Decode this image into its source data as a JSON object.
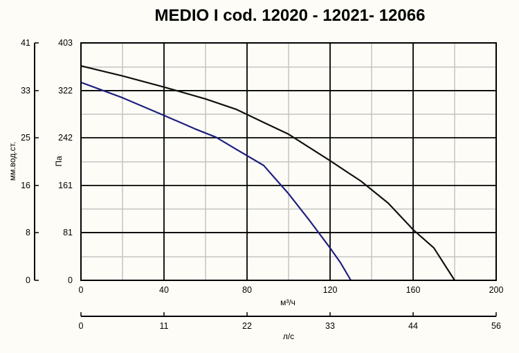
{
  "chart_data": {
    "type": "line",
    "title": "MEDIO I cod. 12020 - 12021- 12066",
    "xlabel": "м³/ч",
    "x2label": "л/с",
    "ylabel": "Па",
    "y2label": "мм.вод.ст.",
    "xlim": [
      0,
      200
    ],
    "ylim": [
      0,
      403
    ],
    "x_ticks": [
      0,
      40,
      80,
      120,
      160,
      200
    ],
    "x_minor": [
      20,
      60,
      100,
      140,
      180
    ],
    "y_ticks": [
      0,
      81,
      161,
      242,
      322,
      403
    ],
    "y_minor": [
      40,
      121,
      201,
      282,
      362
    ],
    "y_ticks_secondary": [
      "0",
      "8",
      "16",
      "25",
      "33",
      "41"
    ],
    "x2_ticks": [
      "0",
      "11",
      "22",
      "33",
      "44",
      "56"
    ],
    "grid": true,
    "colors": {
      "line_1": "#111111",
      "line_2": "#1e1f80",
      "grid_major": "#000000",
      "grid_minor": "#c4c4c4"
    },
    "series": [
      {
        "color": "#111111",
        "x": [
          0,
          20,
          40,
          60,
          75,
          88,
          100,
          120,
          135,
          148,
          160,
          170,
          180
        ],
        "y": [
          364,
          347,
          328,
          308,
          290,
          268,
          248,
          203,
          168,
          131,
          86,
          55,
          0
        ]
      },
      {
        "color": "#1e1f80",
        "x": [
          0,
          20,
          40,
          55,
          65,
          75,
          88,
          100,
          110,
          120,
          125,
          130
        ],
        "y": [
          336,
          310,
          280,
          257,
          243,
          222,
          195,
          147,
          102,
          55,
          30,
          0
        ]
      }
    ]
  }
}
